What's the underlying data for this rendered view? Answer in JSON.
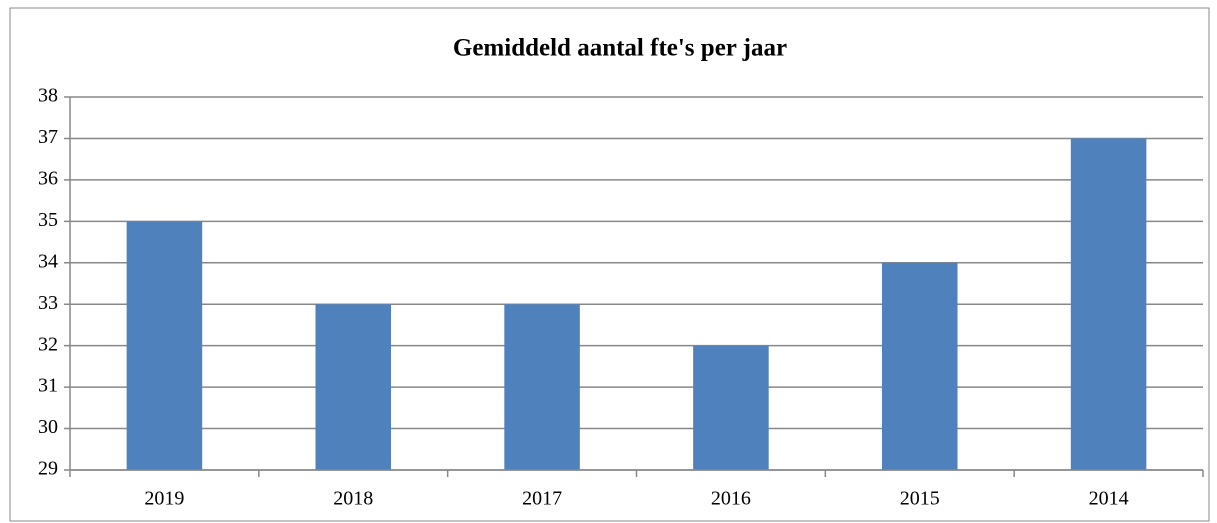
{
  "chart_data": {
    "type": "bar",
    "title": "Gemiddeld aantal fte's per jaar",
    "categories": [
      "2019",
      "2018",
      "2017",
      "2016",
      "2015",
      "2014"
    ],
    "values": [
      35,
      33,
      33,
      32,
      34,
      37
    ],
    "color": "#4f81bd",
    "ylim": [
      29,
      38
    ],
    "yticks": [
      29,
      30,
      31,
      32,
      33,
      34,
      35,
      36,
      37,
      38
    ],
    "grid": true
  }
}
